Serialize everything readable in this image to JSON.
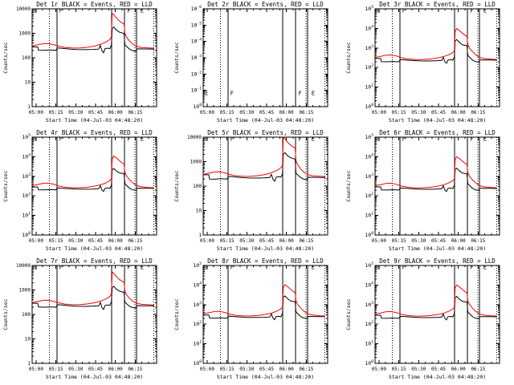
{
  "chart_data": {
    "type": "line",
    "grid": [
      3,
      3
    ],
    "xlabel": "Start Time (04-Jul-03 04:48:20)",
    "ylabel": "Counts/sec",
    "x_ticks": [
      "05:00",
      "05:15",
      "05:30",
      "05:45",
      "06:00",
      "06:15"
    ],
    "x_tick_hours": [
      5.0,
      5.25,
      5.5,
      5.75,
      6.0,
      6.25
    ],
    "x_range_hours": [
      4.95,
      6.52
    ],
    "legend_note": "BLACK = Events, RED = LLD",
    "series_colors": {
      "events": "#000000",
      "lld": "#ff0000"
    },
    "vlines": [
      {
        "t": 5.168,
        "style": "dotted"
      },
      {
        "t": 5.262,
        "style": "solid"
      },
      {
        "t": 5.952,
        "style": "solid"
      },
      {
        "t": 6.113,
        "style": "solid"
      },
      {
        "t": 6.248,
        "style": "dotted"
      },
      {
        "t": 6.265,
        "style": "solid"
      },
      {
        "t": 6.487,
        "style": "dotted"
      }
    ],
    "flags": [
      {
        "label": "E",
        "t": 4.967
      },
      {
        "label": "F",
        "t": 5.29
      },
      {
        "label": "F",
        "t": 6.15
      },
      {
        "label": "E",
        "t": 6.315
      }
    ],
    "time_lld_hours": [
      4.95,
      5.03,
      5.09,
      5.15,
      5.22,
      5.28,
      5.36,
      5.45,
      5.55,
      5.65,
      5.74,
      5.82,
      5.88,
      5.93,
      5.95,
      5.96,
      5.98,
      6.01,
      6.05,
      6.09,
      6.11,
      6.12,
      6.14,
      6.18,
      6.22,
      6.27,
      6.33,
      6.42,
      6.49
    ],
    "time_events_hours": [
      4.95,
      5.02,
      5.03,
      5.1,
      5.17,
      5.25,
      5.27,
      5.33,
      5.42,
      5.52,
      5.62,
      5.72,
      5.79,
      5.81,
      5.83,
      5.85,
      5.87,
      5.9,
      5.93,
      5.95,
      5.96,
      5.98,
      6.01,
      6.05,
      6.09,
      6.11,
      6.12,
      6.14,
      6.18,
      6.22,
      6.26,
      6.27,
      6.35,
      6.45,
      6.49
    ],
    "plots": [
      {
        "name": "det-1r",
        "title": "Det 1r BLACK = Events, RED = LLD",
        "y_style": "decimal",
        "y_decades": 4,
        "y_ticks_top_to_bottom": [
          "10000",
          "1000",
          "100",
          "10",
          "1"
        ],
        "empty": false,
        "lld": [
          300,
          345,
          375,
          380,
          345,
          300,
          265,
          252,
          250,
          268,
          300,
          360,
          440,
          560,
          700,
          6500,
          5800,
          4300,
          3200,
          2600,
          2400,
          1000,
          700,
          480,
          360,
          290,
          262,
          252,
          243
        ],
        "events": [
          278,
          278,
          203,
          200,
          206,
          200,
          252,
          243,
          228,
          216,
          214,
          220,
          226,
          320,
          195,
          160,
          235,
          248,
          235,
          330,
          1550,
          1800,
          1380,
          1120,
          1020,
          960,
          340,
          290,
          225,
          192,
          186,
          232,
          230,
          228,
          224
        ]
      },
      {
        "name": "det-2r",
        "title": "Det 2r BLACK = Events, RED = LLD",
        "y_style": "power",
        "y_decades": 6,
        "y_ticks_top_to_bottom": [
          "10^-6",
          "10^-5",
          "10^-4",
          "10^-3",
          "10^-2",
          "10^-1",
          "10^0"
        ],
        "empty": true,
        "lld": null,
        "events": null
      },
      {
        "name": "det-3r",
        "title": "Det 3r BLACK = Events, RED = LLD",
        "y_style": "power",
        "y_decades": 5,
        "y_ticks_top_to_bottom": [
          "10^5",
          "10^4",
          "10^3",
          "10^2",
          "10^1",
          "10^0"
        ],
        "empty": false,
        "lld": [
          330,
          380,
          430,
          440,
          390,
          320,
          275,
          260,
          258,
          275,
          310,
          370,
          450,
          580,
          720,
          7000,
          9800,
          8000,
          5800,
          4300,
          3900,
          1500,
          1000,
          640,
          450,
          330,
          285,
          268,
          258
        ],
        "events": [
          290,
          290,
          200,
          198,
          205,
          198,
          252,
          243,
          230,
          218,
          216,
          222,
          230,
          330,
          200,
          165,
          240,
          252,
          238,
          340,
          2300,
          2700,
          2000,
          1450,
          1350,
          1280,
          420,
          340,
          240,
          200,
          192,
          245,
          242,
          240,
          236
        ]
      },
      {
        "name": "det-4r",
        "title": "Det 4r BLACK = Events, RED = LLD",
        "y_style": "power",
        "y_decades": 5,
        "y_ticks_top_to_bottom": [
          "10^5",
          "10^4",
          "10^3",
          "10^2",
          "10^1",
          "10^0"
        ],
        "empty": false,
        "lld": [
          330,
          385,
          440,
          450,
          395,
          325,
          278,
          262,
          260,
          278,
          315,
          375,
          460,
          600,
          750,
          7500,
          11000,
          8800,
          6300,
          4700,
          4200,
          1600,
          1050,
          660,
          460,
          335,
          290,
          270,
          260
        ],
        "events": [
          285,
          285,
          205,
          202,
          208,
          202,
          255,
          246,
          232,
          220,
          218,
          224,
          232,
          335,
          202,
          168,
          242,
          255,
          240,
          345,
          2200,
          2500,
          1900,
          1500,
          1400,
          1320,
          430,
          345,
          242,
          202,
          194,
          248,
          245,
          243,
          238
        ]
      },
      {
        "name": "det-5r",
        "title": "Det 5r BLACK = Events, RED = LLD",
        "y_style": "decimal",
        "y_decades": 4,
        "y_ticks_top_to_bottom": [
          "10000",
          "1000",
          "100",
          "10",
          "1"
        ],
        "empty": false,
        "lld": [
          300,
          345,
          380,
          385,
          350,
          300,
          265,
          252,
          250,
          268,
          300,
          360,
          440,
          560,
          700,
          9800,
          8700,
          6400,
          4800,
          3900,
          3600,
          1100,
          750,
          500,
          370,
          295,
          262,
          252,
          243
        ],
        "events": [
          290,
          290,
          195,
          192,
          200,
          195,
          248,
          240,
          226,
          214,
          212,
          218,
          224,
          300,
          190,
          158,
          230,
          245,
          232,
          320,
          2000,
          2350,
          1800,
          1450,
          1320,
          1250,
          340,
          290,
          222,
          190,
          185,
          230,
          228,
          226,
          222
        ]
      },
      {
        "name": "det-6r",
        "title": "Det 6r BLACK = Events, RED = LLD",
        "y_style": "power",
        "y_decades": 5,
        "y_ticks_top_to_bottom": [
          "10^5",
          "10^4",
          "10^3",
          "10^2",
          "10^1",
          "10^0"
        ],
        "empty": false,
        "lld": [
          330,
          380,
          435,
          445,
          390,
          320,
          276,
          260,
          258,
          276,
          312,
          372,
          455,
          585,
          730,
          7200,
          10000,
          8200,
          6000,
          4400,
          4000,
          1550,
          1020,
          650,
          455,
          332,
          287,
          268,
          258
        ],
        "events": [
          288,
          288,
          202,
          199,
          206,
          199,
          253,
          244,
          230,
          218,
          216,
          222,
          230,
          332,
          200,
          166,
          240,
          253,
          238,
          342,
          2250,
          2600,
          1950,
          1470,
          1370,
          1300,
          425,
          342,
          240,
          200,
          192,
          246,
          243,
          241,
          237
        ]
      },
      {
        "name": "det-7r",
        "title": "Det 7r BLACK = Events, RED = LLD",
        "y_style": "decimal",
        "y_decades": 4,
        "y_ticks_top_to_bottom": [
          "10000",
          "1000",
          "100",
          "10",
          "1"
        ],
        "empty": false,
        "lld": [
          300,
          345,
          378,
          380,
          345,
          300,
          265,
          252,
          250,
          268,
          300,
          355,
          430,
          540,
          680,
          5400,
          4800,
          3600,
          2700,
          2250,
          2100,
          900,
          640,
          450,
          345,
          285,
          258,
          250,
          240
        ],
        "events": [
          285,
          285,
          200,
          198,
          204,
          198,
          250,
          241,
          226,
          215,
          213,
          219,
          225,
          310,
          192,
          160,
          232,
          246,
          233,
          325,
          1250,
          1420,
          1100,
          900,
          830,
          790,
          320,
          275,
          215,
          188,
          183,
          228,
          226,
          224,
          220
        ]
      },
      {
        "name": "det-8r",
        "title": "Det 8r BLACK = Events, RED = LLD",
        "y_style": "power",
        "y_decades": 5,
        "y_ticks_top_to_bottom": [
          "10^5",
          "10^4",
          "10^3",
          "10^2",
          "10^1",
          "10^0"
        ],
        "empty": false,
        "lld": [
          340,
          390,
          445,
          455,
          400,
          330,
          282,
          266,
          264,
          282,
          318,
          380,
          465,
          605,
          760,
          7400,
          10500,
          8600,
          6200,
          4600,
          4100,
          1600,
          1040,
          660,
          460,
          338,
          292,
          272,
          262
        ],
        "events": [
          292,
          292,
          206,
          203,
          210,
          203,
          257,
          248,
          234,
          222,
          220,
          226,
          234,
          338,
          204,
          170,
          244,
          257,
          242,
          348,
          2400,
          2800,
          2100,
          1550,
          1450,
          1370,
          435,
          350,
          245,
          204,
          196,
          250,
          247,
          245,
          240
        ]
      },
      {
        "name": "det-9r",
        "title": "Det 9r BLACK = Events, RED = LLD",
        "y_style": "power",
        "y_decades": 5,
        "y_ticks_top_to_bottom": [
          "10^5",
          "10^4",
          "10^3",
          "10^2",
          "10^1",
          "10^0"
        ],
        "empty": false,
        "lld": [
          330,
          382,
          436,
          446,
          392,
          322,
          277,
          261,
          259,
          277,
          313,
          373,
          457,
          590,
          735,
          7300,
          10100,
          8300,
          6050,
          4450,
          4050,
          1560,
          1025,
          652,
          456,
          333,
          288,
          269,
          259
        ],
        "events": [
          288,
          288,
          202,
          199,
          206,
          199,
          253,
          244,
          230,
          218,
          216,
          222,
          230,
          332,
          200,
          166,
          240,
          253,
          238,
          342,
          2300,
          2650,
          1980,
          1480,
          1380,
          1310,
          428,
          344,
          241,
          200,
          192,
          246,
          243,
          241,
          237
        ]
      }
    ]
  }
}
